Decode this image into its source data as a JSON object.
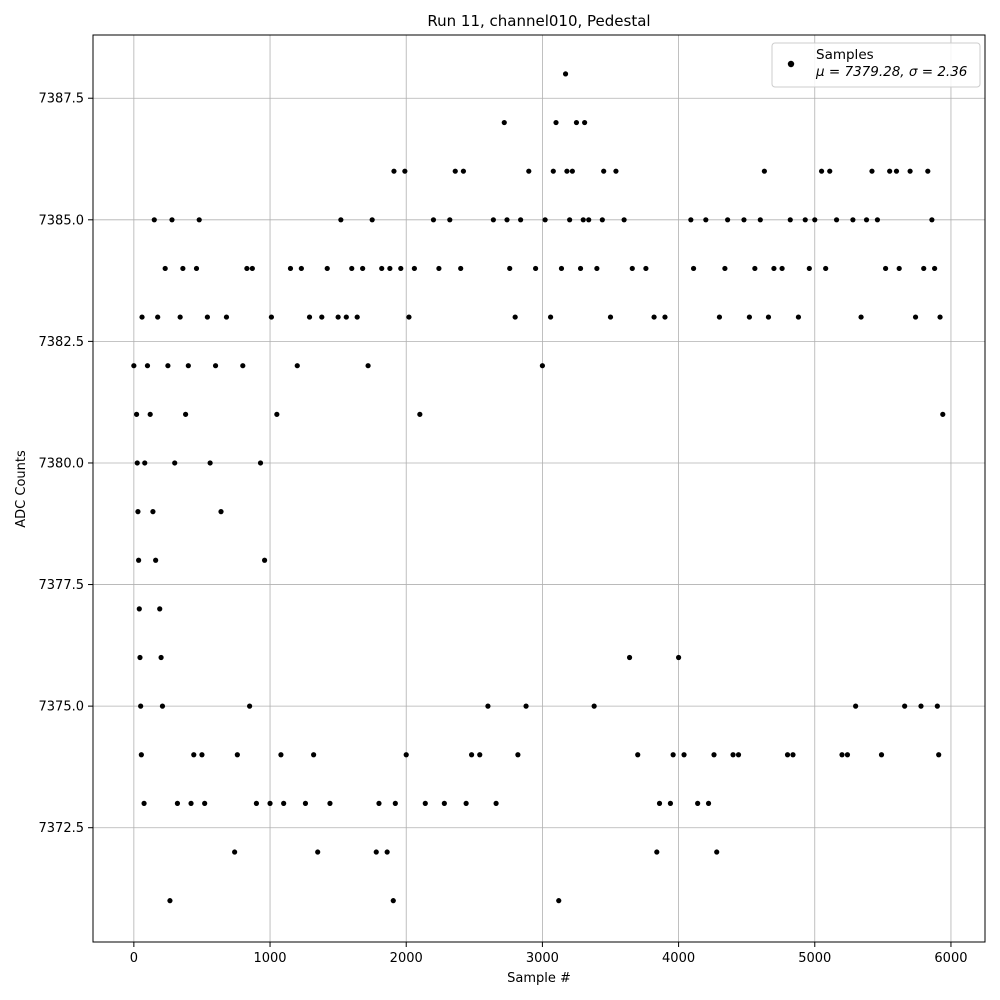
{
  "chart_data": {
    "type": "scatter",
    "title": "Run 11, channel010, Pedestal",
    "xlabel": "Sample #",
    "ylabel": "ADC Counts",
    "xlim": [
      -300,
      6250
    ],
    "ylim": [
      7370.15,
      7388.8
    ],
    "xticks": [
      0,
      1000,
      2000,
      3000,
      4000,
      5000,
      6000
    ],
    "yticks": [
      7372.5,
      7375.0,
      7377.5,
      7380.0,
      7382.5,
      7385.0,
      7387.5
    ],
    "xtick_labels": [
      "0",
      "1000",
      "2000",
      "3000",
      "4000",
      "5000",
      "6000"
    ],
    "ytick_labels": [
      "7372.5",
      "7375.0",
      "7377.5",
      "7380.0",
      "7382.5",
      "7385.0",
      "7387.5"
    ],
    "grid": true,
    "legend": {
      "position": "top-right",
      "series_name": "Samples",
      "stats_label": "μ = 7379.28, σ = 2.36"
    },
    "marker_color": "#000000",
    "series": [
      {
        "name": "Samples",
        "points": [
          [
            0,
            7382
          ],
          [
            20,
            7381
          ],
          [
            25,
            7380
          ],
          [
            30,
            7379
          ],
          [
            35,
            7378
          ],
          [
            40,
            7377
          ],
          [
            45,
            7376
          ],
          [
            50,
            7375
          ],
          [
            55,
            7374
          ],
          [
            60,
            7383
          ],
          [
            75,
            7373
          ],
          [
            80,
            7380
          ],
          [
            100,
            7382
          ],
          [
            120,
            7381
          ],
          [
            140,
            7379
          ],
          [
            150,
            7385
          ],
          [
            160,
            7378
          ],
          [
            175,
            7383
          ],
          [
            190,
            7377
          ],
          [
            200,
            7376
          ],
          [
            210,
            7375
          ],
          [
            230,
            7384
          ],
          [
            250,
            7382
          ],
          [
            265,
            7371
          ],
          [
            280,
            7385
          ],
          [
            300,
            7380
          ],
          [
            320,
            7373
          ],
          [
            340,
            7383
          ],
          [
            360,
            7384
          ],
          [
            380,
            7381
          ],
          [
            400,
            7382
          ],
          [
            420,
            7373
          ],
          [
            440,
            7374
          ],
          [
            460,
            7384
          ],
          [
            480,
            7385
          ],
          [
            500,
            7374
          ],
          [
            520,
            7373
          ],
          [
            540,
            7383
          ],
          [
            560,
            7380
          ],
          [
            600,
            7382
          ],
          [
            640,
            7379
          ],
          [
            680,
            7383
          ],
          [
            740,
            7372
          ],
          [
            760,
            7374
          ],
          [
            800,
            7382
          ],
          [
            830,
            7384
          ],
          [
            850,
            7375
          ],
          [
            870,
            7384
          ],
          [
            900,
            7373
          ],
          [
            930,
            7380
          ],
          [
            960,
            7378
          ],
          [
            1000,
            7373
          ],
          [
            1010,
            7383
          ],
          [
            1050,
            7381
          ],
          [
            1080,
            7374
          ],
          [
            1100,
            7373
          ],
          [
            1150,
            7384
          ],
          [
            1200,
            7382
          ],
          [
            1230,
            7384
          ],
          [
            1260,
            7373
          ],
          [
            1290,
            7383
          ],
          [
            1320,
            7374
          ],
          [
            1350,
            7372
          ],
          [
            1380,
            7383
          ],
          [
            1420,
            7384
          ],
          [
            1440,
            7373
          ],
          [
            1500,
            7383
          ],
          [
            1520,
            7385
          ],
          [
            1560,
            7383
          ],
          [
            1600,
            7384
          ],
          [
            1640,
            7383
          ],
          [
            1680,
            7384
          ],
          [
            1720,
            7382
          ],
          [
            1750,
            7385
          ],
          [
            1780,
            7372
          ],
          [
            1800,
            7373
          ],
          [
            1820,
            7384
          ],
          [
            1860,
            7372
          ],
          [
            1880,
            7384
          ],
          [
            1905,
            7371
          ],
          [
            1910,
            7386
          ],
          [
            1920,
            7373
          ],
          [
            1960,
            7384
          ],
          [
            1990,
            7386
          ],
          [
            2000,
            7374
          ],
          [
            2020,
            7383
          ],
          [
            2060,
            7384
          ],
          [
            2100,
            7381
          ],
          [
            2140,
            7373
          ],
          [
            2200,
            7385
          ],
          [
            2240,
            7384
          ],
          [
            2280,
            7373
          ],
          [
            2320,
            7385
          ],
          [
            2360,
            7386
          ],
          [
            2400,
            7384
          ],
          [
            2420,
            7386
          ],
          [
            2440,
            7373
          ],
          [
            2480,
            7374
          ],
          [
            2540,
            7374
          ],
          [
            2600,
            7375
          ],
          [
            2640,
            7385
          ],
          [
            2660,
            7373
          ],
          [
            2720,
            7387
          ],
          [
            2740,
            7385
          ],
          [
            2760,
            7384
          ],
          [
            2800,
            7383
          ],
          [
            2820,
            7374
          ],
          [
            2840,
            7385
          ],
          [
            2880,
            7375
          ],
          [
            2900,
            7386
          ],
          [
            2950,
            7384
          ],
          [
            3000,
            7382
          ],
          [
            3020,
            7385
          ],
          [
            3060,
            7383
          ],
          [
            3080,
            7386
          ],
          [
            3100,
            7387
          ],
          [
            3120,
            7371
          ],
          [
            3140,
            7384
          ],
          [
            3170,
            7388
          ],
          [
            3180,
            7386
          ],
          [
            3200,
            7385
          ],
          [
            3220,
            7386
          ],
          [
            3250,
            7387
          ],
          [
            3280,
            7384
          ],
          [
            3300,
            7385
          ],
          [
            3310,
            7387
          ],
          [
            3340,
            7385
          ],
          [
            3380,
            7375
          ],
          [
            3400,
            7384
          ],
          [
            3440,
            7385
          ],
          [
            3450,
            7386
          ],
          [
            3500,
            7383
          ],
          [
            3540,
            7386
          ],
          [
            3600,
            7385
          ],
          [
            3640,
            7376
          ],
          [
            3660,
            7384
          ],
          [
            3700,
            7374
          ],
          [
            3760,
            7384
          ],
          [
            3820,
            7383
          ],
          [
            3840,
            7372
          ],
          [
            3860,
            7373
          ],
          [
            3900,
            7383
          ],
          [
            3940,
            7373
          ],
          [
            3960,
            7374
          ],
          [
            4000,
            7376
          ],
          [
            4040,
            7374
          ],
          [
            4090,
            7385
          ],
          [
            4110,
            7384
          ],
          [
            4140,
            7373
          ],
          [
            4200,
            7385
          ],
          [
            4220,
            7373
          ],
          [
            4260,
            7374
          ],
          [
            4280,
            7372
          ],
          [
            4300,
            7383
          ],
          [
            4340,
            7384
          ],
          [
            4360,
            7385
          ],
          [
            4400,
            7374
          ],
          [
            4440,
            7374
          ],
          [
            4480,
            7385
          ],
          [
            4520,
            7383
          ],
          [
            4560,
            7384
          ],
          [
            4600,
            7385
          ],
          [
            4630,
            7386
          ],
          [
            4660,
            7383
          ],
          [
            4700,
            7384
          ],
          [
            4760,
            7384
          ],
          [
            4800,
            7374
          ],
          [
            4820,
            7385
          ],
          [
            4840,
            7374
          ],
          [
            4880,
            7383
          ],
          [
            4930,
            7385
          ],
          [
            4960,
            7384
          ],
          [
            5000,
            7385
          ],
          [
            5050,
            7386
          ],
          [
            5080,
            7384
          ],
          [
            5110,
            7386
          ],
          [
            5160,
            7385
          ],
          [
            5200,
            7374
          ],
          [
            5240,
            7374
          ],
          [
            5280,
            7385
          ],
          [
            5300,
            7375
          ],
          [
            5340,
            7383
          ],
          [
            5380,
            7385
          ],
          [
            5420,
            7386
          ],
          [
            5460,
            7385
          ],
          [
            5490,
            7374
          ],
          [
            5520,
            7384
          ],
          [
            5550,
            7386
          ],
          [
            5600,
            7386
          ],
          [
            5620,
            7384
          ],
          [
            5660,
            7375
          ],
          [
            5700,
            7386
          ],
          [
            5740,
            7383
          ],
          [
            5780,
            7375
          ],
          [
            5800,
            7384
          ],
          [
            5830,
            7386
          ],
          [
            5860,
            7385
          ],
          [
            5880,
            7384
          ],
          [
            5900,
            7375
          ],
          [
            5910,
            7374
          ],
          [
            5920,
            7383
          ],
          [
            5940,
            7381
          ]
        ]
      }
    ]
  }
}
